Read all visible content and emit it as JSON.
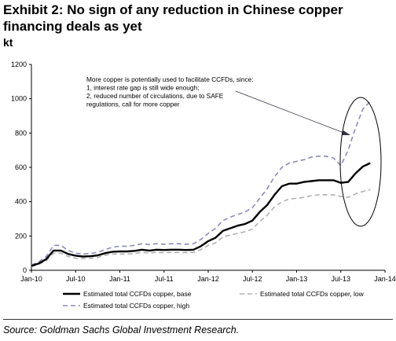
{
  "page": {
    "title": "Exhibit 2: No sign of any reduction in Chinese copper financing deals as yet",
    "unit": "kt",
    "source": "Source: Goldman Sachs Global Investment Research."
  },
  "chart_data": {
    "type": "line",
    "ylim": [
      0,
      1200
    ],
    "yticks": [
      0,
      200,
      400,
      600,
      800,
      1000,
      1200
    ],
    "xtick_labels": [
      "Jan-10",
      "Jul-10",
      "Jan-11",
      "Jul-11",
      "Jan-12",
      "Jul-12",
      "Jan-13",
      "Jul-13",
      "Jan-14"
    ],
    "xlim": [
      0,
      48
    ],
    "grid": false,
    "legend_position": "bottom",
    "annotation": {
      "lines": [
        "More copper is potentially used to facilitate CCFDs, since:",
        "1, interest rate gap is still wide enough;",
        "2, reduced number of circulations, due to SAFE",
        "regulations, call for more copper"
      ]
    },
    "series": [
      {
        "name": "Estimated total CCFDs copper, base",
        "color": "#000000",
        "style": "solid",
        "x": [
          0,
          1,
          2,
          3,
          4,
          5,
          6,
          7,
          8,
          9,
          10,
          11,
          12,
          13,
          14,
          15,
          16,
          17,
          18,
          19,
          20,
          21,
          22,
          23,
          24,
          25,
          26,
          27,
          28,
          29,
          30,
          31,
          32,
          33,
          34,
          35,
          36,
          37,
          38,
          39,
          40,
          41,
          42,
          43,
          44,
          45,
          46
        ],
        "values": [
          25,
          40,
          65,
          115,
          115,
          95,
          85,
          80,
          82,
          87,
          100,
          108,
          110,
          110,
          113,
          120,
          115,
          120,
          118,
          120,
          120,
          118,
          120,
          140,
          170,
          190,
          230,
          245,
          260,
          270,
          290,
          340,
          380,
          440,
          490,
          505,
          505,
          515,
          520,
          525,
          525,
          525,
          510,
          515,
          565,
          605,
          625
        ]
      },
      {
        "name": "Estimated total CCFDs copper, low",
        "color": "#b0b0b0",
        "style": "dashed",
        "x": [
          0,
          1,
          2,
          3,
          4,
          5,
          6,
          7,
          8,
          9,
          10,
          11,
          12,
          13,
          14,
          15,
          16,
          17,
          18,
          19,
          20,
          21,
          22,
          23,
          24,
          25,
          26,
          27,
          28,
          29,
          30,
          31,
          32,
          33,
          34,
          35,
          36,
          37,
          38,
          39,
          40,
          41,
          42,
          43,
          44,
          45,
          46
        ],
        "values": [
          22,
          35,
          55,
          100,
          100,
          80,
          70,
          68,
          70,
          75,
          88,
          95,
          95,
          95,
          98,
          105,
          100,
          105,
          102,
          105,
          105,
          103,
          105,
          120,
          145,
          160,
          195,
          205,
          215,
          225,
          240,
          285,
          320,
          370,
          400,
          415,
          420,
          425,
          435,
          440,
          440,
          440,
          430,
          425,
          445,
          460,
          470
        ]
      },
      {
        "name": "Estimated total CCFDs copper, high",
        "color": "#8a8ab8",
        "style": "dashed",
        "x": [
          0,
          1,
          2,
          3,
          4,
          5,
          6,
          7,
          8,
          9,
          10,
          11,
          12,
          13,
          14,
          15,
          16,
          17,
          18,
          19,
          20,
          21,
          22,
          23,
          24,
          25,
          26,
          27,
          28,
          29,
          30,
          31,
          32,
          33,
          34,
          35,
          36,
          37,
          38,
          39,
          40,
          41,
          42,
          43,
          44,
          45,
          46
        ],
        "values": [
          30,
          50,
          80,
          145,
          145,
          115,
          100,
          95,
          98,
          105,
          120,
          135,
          140,
          140,
          145,
          155,
          150,
          155,
          152,
          155,
          155,
          152,
          155,
          180,
          215,
          245,
          290,
          310,
          325,
          340,
          365,
          420,
          475,
          545,
          600,
          625,
          635,
          645,
          660,
          665,
          665,
          655,
          610,
          700,
          830,
          940,
          985
        ]
      }
    ]
  }
}
